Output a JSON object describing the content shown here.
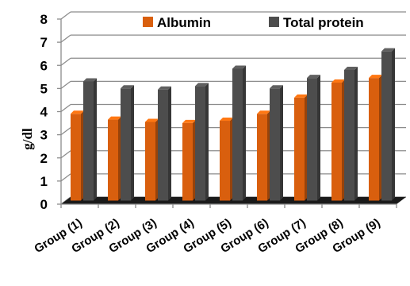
{
  "chart_data": {
    "type": "bar",
    "title": "",
    "xlabel": "",
    "ylabel": "g/dl",
    "ylim": [
      0,
      8
    ],
    "yticks": [
      "0",
      "1",
      "2",
      "3",
      "4",
      "5",
      "6",
      "7",
      "8"
    ],
    "grid": true,
    "legend_position": "top",
    "categories": [
      "Group (1)",
      "Group (2)",
      "Group (3)",
      "Group (4)",
      "Group (5)",
      "Group (6)",
      "Group (7)",
      "Group (8)",
      "Group (9)"
    ],
    "series": [
      {
        "name": "Albumin",
        "color": "#d95f0e",
        "values": [
          3.75,
          3.5,
          3.4,
          3.35,
          3.45,
          3.75,
          4.45,
          5.1,
          5.3
        ]
      },
      {
        "name": "Total protein",
        "color": "#4d4d4d",
        "values": [
          5.15,
          4.85,
          4.8,
          4.95,
          5.7,
          4.85,
          5.3,
          5.65,
          6.45
        ]
      }
    ]
  }
}
